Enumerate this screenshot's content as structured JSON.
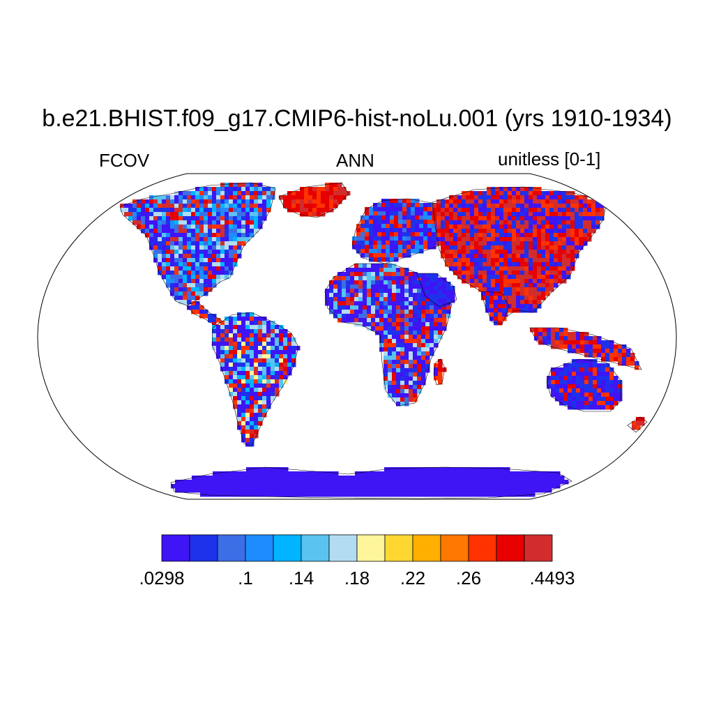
{
  "title": "b.e21.BHIST.f09_g17.CMIP6-hist-noLu.001 (yrs 1910-1934)",
  "left_label": "FCOV",
  "center_label": "ANN",
  "right_label": "unitless [0-1]",
  "map": {
    "projection": "Robinson",
    "variable": "FCOV",
    "season": "ANN",
    "ocean_color": "#ffffff",
    "outline_color": "#000000"
  },
  "colorbar": {
    "colors": [
      "#3f14f5",
      "#1e32eb",
      "#3c6ee6",
      "#1e8cff",
      "#00b4ff",
      "#5ac3f0",
      "#b4dcf0",
      "#fff59b",
      "#ffd732",
      "#ffaf00",
      "#ff7800",
      "#ff3200",
      "#e60000",
      "#d22d2d"
    ],
    "labels": [
      ".0298",
      ".1",
      ".14",
      ".18",
      ".22",
      ".26",
      ".4493"
    ],
    "label_after_box": [
      0,
      3,
      5,
      7,
      9,
      11,
      14
    ]
  }
}
